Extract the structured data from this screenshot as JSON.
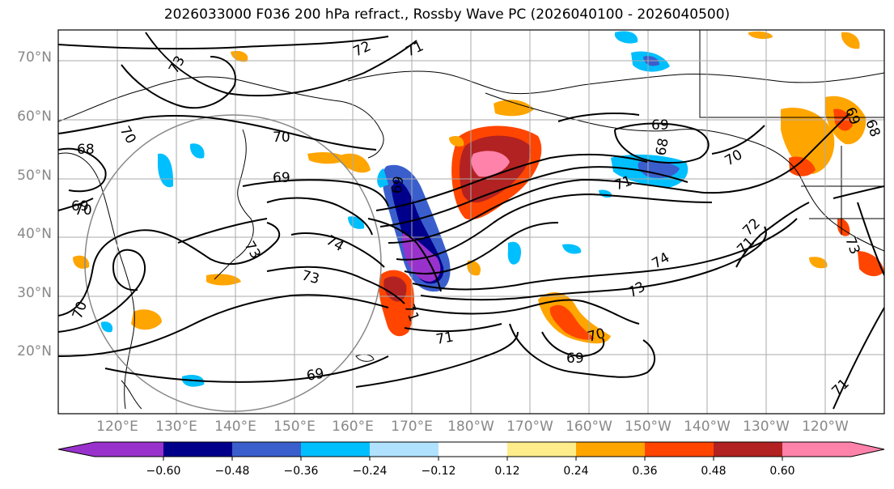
{
  "title": "2026033000 F036 200 hPa refract., Rossby Wave PC (2026040100 - 2026040500)",
  "lat_labels": [
    "70°N",
    "60°N",
    "50°N",
    "40°N",
    "30°N",
    "20°N"
  ],
  "lon_labels": [
    "120°E",
    "130°E",
    "140°E",
    "150°E",
    "160°E",
    "170°E",
    "180°W",
    "170°W",
    "160°W",
    "150°W",
    "140°W",
    "130°W",
    "120°W"
  ],
  "contour_labels": [
    "72",
    "71",
    "73",
    "70",
    "68",
    "69",
    "70",
    "69",
    "69",
    "73",
    "74",
    "73",
    "71",
    "69",
    "69",
    "68",
    "70",
    "71",
    "74",
    "73",
    "72",
    "71",
    "73",
    "68",
    "69",
    "70",
    "71",
    "70",
    "69",
    "70",
    "71"
  ],
  "colorbar": {
    "ticks": [
      "−0.60",
      "−0.48",
      "−0.36",
      "−0.24",
      "−0.12",
      "0.12",
      "0.24",
      "0.36",
      "0.48",
      "0.60"
    ],
    "colors": [
      "#9932CC",
      "#00008B",
      "#3A5FCD",
      "#00BFFF",
      "#B0E2FF",
      "#FFFFFF",
      "#FFEC8B",
      "#FFA500",
      "#FF4500",
      "#B22222",
      "#FF82AB"
    ]
  }
}
